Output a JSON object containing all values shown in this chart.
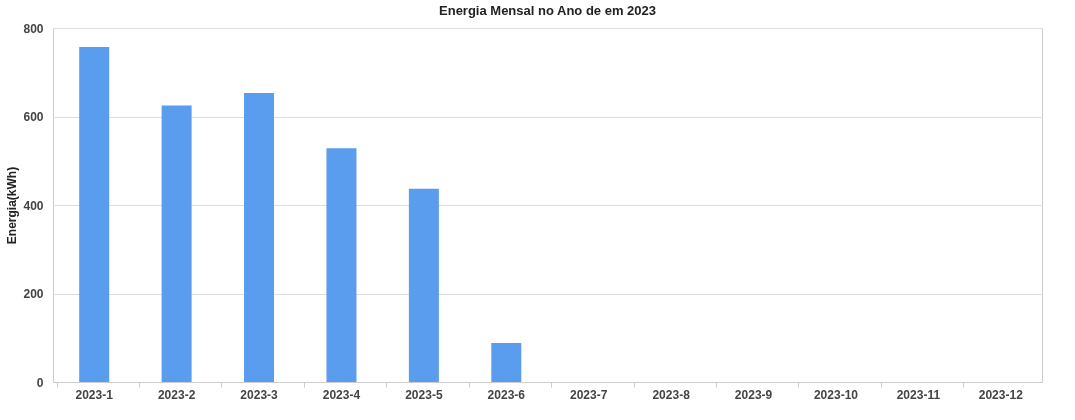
{
  "chart_data": {
    "type": "bar",
    "title": "Energia Mensal no Ano de em 2023",
    "ylabel": "Energia(kWh)",
    "categories": [
      "2023-1",
      "2023-2",
      "2023-3",
      "2023-4",
      "2023-5",
      "2023-6",
      "2023-7",
      "2023-8",
      "2023-9",
      "2023-10",
      "2023-11",
      "2023-12"
    ],
    "values": [
      757,
      625,
      653,
      528,
      437,
      88,
      0,
      0,
      0,
      0,
      0,
      0
    ],
    "color": "#5a9ced",
    "ylim": [
      0,
      800
    ],
    "yticks": [
      0,
      200,
      400,
      600,
      800
    ],
    "grid": "y"
  }
}
